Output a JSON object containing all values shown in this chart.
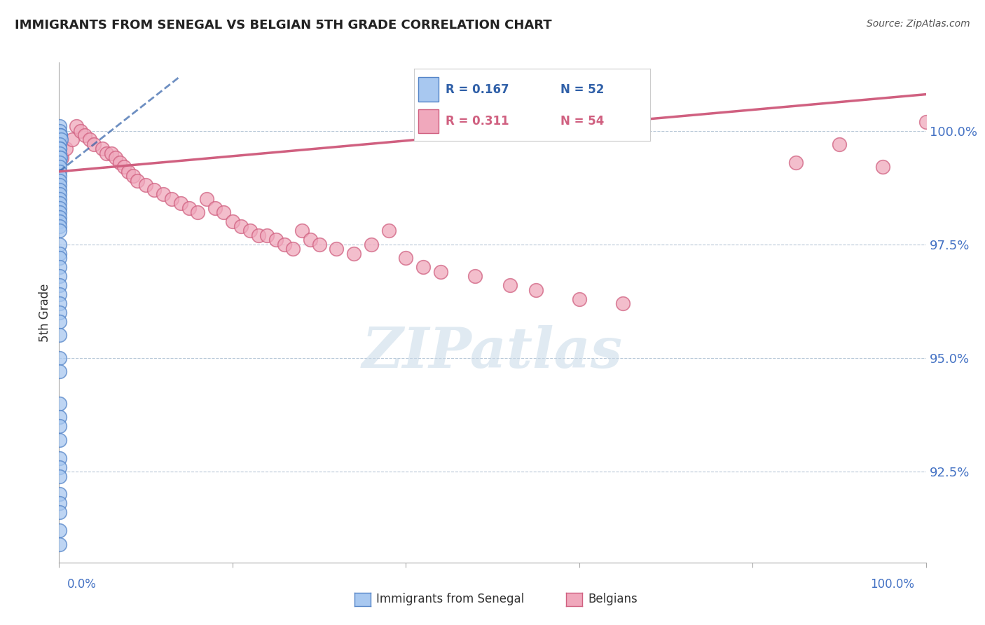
{
  "title": "IMMIGRANTS FROM SENEGAL VS BELGIAN 5TH GRADE CORRELATION CHART",
  "source": "Source: ZipAtlas.com",
  "ylabel": "5th Grade",
  "xlim": [
    0.0,
    100.0
  ],
  "ylim": [
    90.5,
    101.5
  ],
  "ytick_vals": [
    92.5,
    95.0,
    97.5,
    100.0
  ],
  "ytick_labels": [
    "92.5%",
    "95.0%",
    "97.5%",
    "100.0%"
  ],
  "legend_blue_r": "0.167",
  "legend_blue_n": "52",
  "legend_pink_r": "0.311",
  "legend_pink_n": "54",
  "watermark": "ZIPatlas",
  "blue_scatter_x": [
    0.05,
    0.08,
    0.12,
    0.15,
    0.18,
    0.05,
    0.07,
    0.09,
    0.06,
    0.08,
    0.1,
    0.07,
    0.05,
    0.06,
    0.08,
    0.05,
    0.07,
    0.06,
    0.08,
    0.05,
    0.06,
    0.07,
    0.05,
    0.06,
    0.04,
    0.05,
    0.06,
    0.07,
    0.05,
    0.06,
    0.04,
    0.05,
    0.07,
    0.06,
    0.05,
    0.04,
    0.06,
    0.05,
    0.07,
    0.06,
    0.08,
    0.05,
    0.06,
    0.04,
    0.05,
    0.07,
    0.06,
    0.05,
    0.04,
    0.05,
    0.06,
    0.05
  ],
  "blue_scatter_y": [
    100.1,
    100.0,
    99.9,
    99.9,
    99.8,
    99.7,
    99.6,
    99.6,
    99.5,
    99.4,
    99.4,
    99.3,
    99.2,
    99.1,
    99.0,
    98.9,
    98.8,
    98.7,
    98.6,
    98.5,
    98.4,
    98.3,
    98.2,
    98.1,
    98.0,
    97.9,
    97.8,
    97.5,
    97.3,
    97.2,
    97.0,
    96.8,
    96.6,
    96.4,
    96.2,
    96.0,
    95.8,
    95.5,
    95.0,
    94.7,
    94.0,
    93.7,
    93.5,
    93.2,
    92.8,
    92.6,
    92.4,
    92.0,
    91.8,
    91.6,
    91.2,
    90.9
  ],
  "pink_scatter_x": [
    0.3,
    0.8,
    1.5,
    2.0,
    2.5,
    3.0,
    3.5,
    4.0,
    5.0,
    5.5,
    6.0,
    6.5,
    7.0,
    7.5,
    8.0,
    8.5,
    9.0,
    10.0,
    11.0,
    12.0,
    13.0,
    14.0,
    15.0,
    16.0,
    17.0,
    18.0,
    19.0,
    20.0,
    21.0,
    22.0,
    23.0,
    24.0,
    25.0,
    26.0,
    27.0,
    28.0,
    29.0,
    30.0,
    32.0,
    34.0,
    36.0,
    38.0,
    40.0,
    42.0,
    44.0,
    48.0,
    52.0,
    55.0,
    60.0,
    65.0,
    85.0,
    90.0,
    95.0,
    100.0
  ],
  "pink_scatter_y": [
    99.4,
    99.6,
    99.8,
    100.1,
    100.0,
    99.9,
    99.8,
    99.7,
    99.6,
    99.5,
    99.5,
    99.4,
    99.3,
    99.2,
    99.1,
    99.0,
    98.9,
    98.8,
    98.7,
    98.6,
    98.5,
    98.4,
    98.3,
    98.2,
    98.5,
    98.3,
    98.2,
    98.0,
    97.9,
    97.8,
    97.7,
    97.7,
    97.6,
    97.5,
    97.4,
    97.8,
    97.6,
    97.5,
    97.4,
    97.3,
    97.5,
    97.8,
    97.2,
    97.0,
    96.9,
    96.8,
    96.6,
    96.5,
    96.3,
    96.2,
    99.3,
    99.7,
    99.2,
    100.2
  ],
  "blue_trend_x": [
    0.0,
    14.0
  ],
  "blue_trend_y": [
    99.1,
    101.2
  ],
  "pink_trend_x": [
    0.0,
    100.0
  ],
  "pink_trend_y": [
    99.1,
    100.8
  ],
  "blue_color": "#a8c8f0",
  "pink_color": "#f0a8bc",
  "blue_edge_color": "#5585c8",
  "pink_edge_color": "#d06080",
  "blue_line_color": "#3060a8",
  "pink_line_color": "#d06080",
  "grid_color": "#b8c8d8",
  "title_fontsize": 13,
  "axis_label_color": "#4472c4",
  "background_color": "#ffffff"
}
